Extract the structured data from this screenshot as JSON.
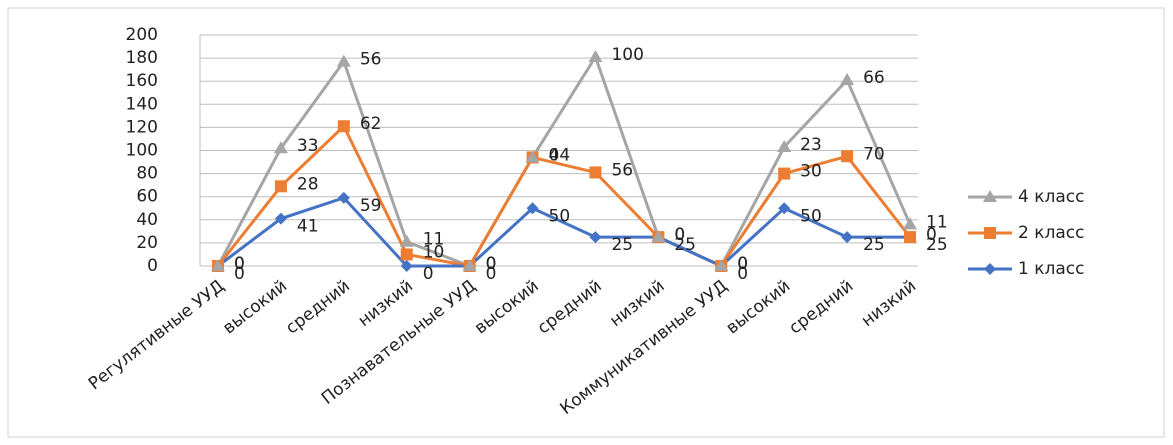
{
  "chart_data": {
    "type": "line",
    "stacked": true,
    "categories": [
      "Регулятивные УУД",
      "высокий",
      "средний",
      "низкий",
      "Познавательные УУД",
      "высокий",
      "средний",
      "низкий",
      "Коммуникативные УУД",
      "высокий",
      "средний",
      "низкий"
    ],
    "series": [
      {
        "name": "1 класс",
        "color": "#4472c4",
        "marker": "diamond",
        "values": [
          0,
          41,
          59,
          0,
          0,
          50,
          25,
          25,
          0,
          50,
          25,
          25
        ]
      },
      {
        "name": "2 класс",
        "color": "#ed7d31",
        "marker": "square",
        "values": [
          0,
          28,
          62,
          10,
          0,
          44,
          56,
          0,
          0,
          30,
          70,
          0
        ]
      },
      {
        "name": "4 класс",
        "color": "#a5a5a5",
        "marker": "triangle",
        "values": [
          0,
          33,
          56,
          11,
          0,
          0,
          100,
          0,
          0,
          23,
          66,
          11
        ]
      }
    ],
    "ylim": [
      0,
      200
    ],
    "yticks": [
      0,
      20,
      40,
      60,
      80,
      100,
      120,
      140,
      160,
      180,
      200
    ],
    "grid": true,
    "legend": "right"
  }
}
